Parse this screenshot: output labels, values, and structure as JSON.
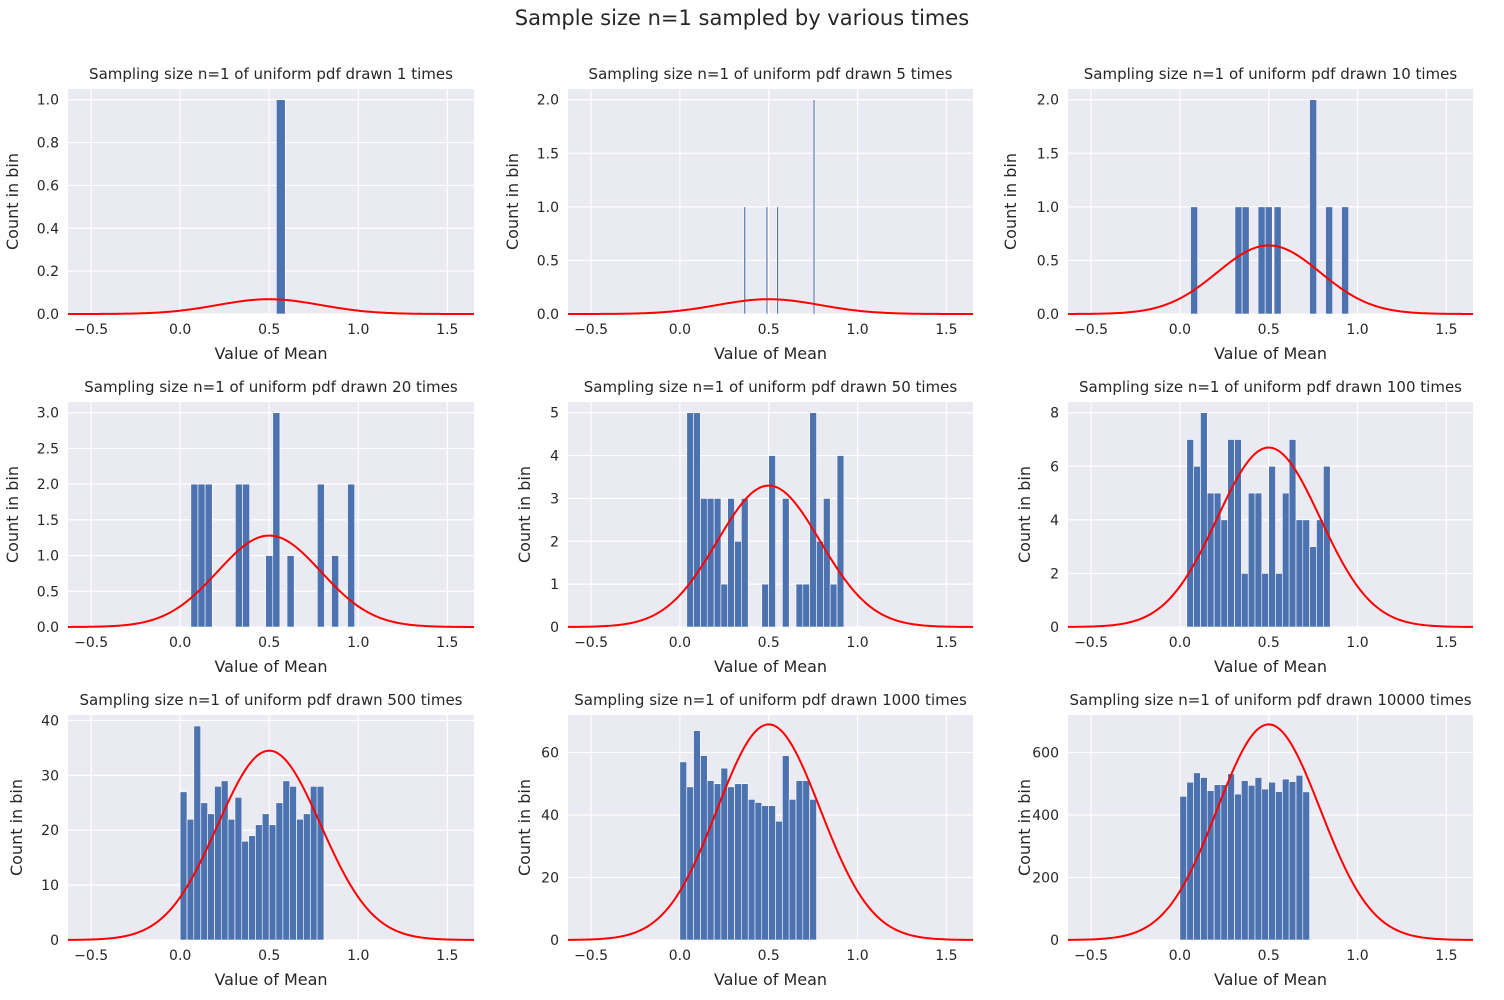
{
  "figure": {
    "suptitle": "Sample size n=1 sampled by various times"
  },
  "colors": {
    "panel_bg": "#EAEAF2",
    "grid": "#ffffff",
    "bar": "#4C72B0",
    "curve": "#ff0000",
    "text": "#262626"
  },
  "chart_data": [
    {
      "type": "bar",
      "title": "Sampling size n=1 of uniform pdf drawn 1 times",
      "xlabel": "Value of Mean",
      "ylabel": "Count in bin",
      "xlim": [
        -0.63,
        1.65
      ],
      "ylim": [
        0,
        1.05
      ],
      "xticks": [
        -0.5,
        0.0,
        0.5,
        1.0,
        1.5
      ],
      "xticklabels": [
        "−0.5",
        "0.0",
        "0.5",
        "1.0",
        "1.5"
      ],
      "yticks": [
        0,
        0.2,
        0.4,
        0.6,
        0.8,
        1.0
      ],
      "yticklabels": [
        "0.0",
        "0.2",
        "0.4",
        "0.6",
        "0.8",
        "1.0"
      ],
      "bin_width": 0.05,
      "bars": [
        {
          "x": 0.565,
          "y": 1
        }
      ],
      "curve": {
        "mean": 0.5,
        "sd": 0.29,
        "peak": 0.069
      },
      "grid": true
    },
    {
      "type": "bar",
      "title": "Sampling size n=1 of uniform pdf drawn 5 times",
      "xlabel": "Value of Mean",
      "ylabel": "Count in bin",
      "xlim": [
        -0.63,
        1.65
      ],
      "ylim": [
        0,
        2.1
      ],
      "xticks": [
        -0.5,
        0.0,
        0.5,
        1.0,
        1.5
      ],
      "xticklabels": [
        "−0.5",
        "0.0",
        "0.5",
        "1.0",
        "1.5"
      ],
      "yticks": [
        0,
        0.5,
        1.0,
        1.5,
        2.0
      ],
      "yticklabels": [
        "0.0",
        "0.5",
        "1.0",
        "1.5",
        "2.0"
      ],
      "bin_width": 0.01,
      "bars": [
        {
          "x": 0.365,
          "y": 1
        },
        {
          "x": 0.49,
          "y": 1
        },
        {
          "x": 0.55,
          "y": 1
        },
        {
          "x": 0.755,
          "y": 2
        }
      ],
      "curve": {
        "mean": 0.5,
        "sd": 0.29,
        "peak": 0.138
      },
      "grid": true
    },
    {
      "type": "bar",
      "title": "Sampling size n=1 of uniform pdf drawn 10 times",
      "xlabel": "Value of Mean",
      "ylabel": "Count in bin",
      "xlim": [
        -0.63,
        1.65
      ],
      "ylim": [
        0,
        2.1
      ],
      "xticks": [
        -0.5,
        0.0,
        0.5,
        1.0,
        1.5
      ],
      "xticklabels": [
        "−0.5",
        "0.0",
        "0.5",
        "1.0",
        "1.5"
      ],
      "yticks": [
        0,
        0.5,
        1.0,
        1.5,
        2.0
      ],
      "yticklabels": [
        "0.0",
        "0.5",
        "1.0",
        "1.5",
        "2.0"
      ],
      "bin_width": 0.04,
      "bars": [
        {
          "x": 0.08,
          "y": 1
        },
        {
          "x": 0.33,
          "y": 1
        },
        {
          "x": 0.37,
          "y": 1
        },
        {
          "x": 0.46,
          "y": 1
        },
        {
          "x": 0.5,
          "y": 1
        },
        {
          "x": 0.55,
          "y": 1
        },
        {
          "x": 0.75,
          "y": 2
        },
        {
          "x": 0.84,
          "y": 1
        },
        {
          "x": 0.93,
          "y": 1
        }
      ],
      "curve": {
        "mean": 0.5,
        "sd": 0.29,
        "peak": 0.64
      },
      "grid": true
    },
    {
      "type": "bar",
      "title": "Sampling size n=1 of uniform pdf drawn 20 times",
      "xlabel": "Value of Mean",
      "ylabel": "Count in bin",
      "xlim": [
        -0.63,
        1.65
      ],
      "ylim": [
        0,
        3.15
      ],
      "xticks": [
        -0.5,
        0.0,
        0.5,
        1.0,
        1.5
      ],
      "xticklabels": [
        "−0.5",
        "0.0",
        "0.5",
        "1.0",
        "1.5"
      ],
      "yticks": [
        0,
        0.5,
        1.0,
        1.5,
        2.0,
        2.5,
        3.0
      ],
      "yticklabels": [
        "0.0",
        "0.5",
        "1.0",
        "1.5",
        "2.0",
        "2.5",
        "3.0"
      ],
      "bin_width": 0.04,
      "bars": [
        {
          "x": 0.08,
          "y": 2
        },
        {
          "x": 0.12,
          "y": 2
        },
        {
          "x": 0.16,
          "y": 2
        },
        {
          "x": 0.33,
          "y": 2
        },
        {
          "x": 0.37,
          "y": 2
        },
        {
          "x": 0.5,
          "y": 1
        },
        {
          "x": 0.54,
          "y": 3
        },
        {
          "x": 0.62,
          "y": 1
        },
        {
          "x": 0.79,
          "y": 2
        },
        {
          "x": 0.87,
          "y": 1
        },
        {
          "x": 0.96,
          "y": 2
        }
      ],
      "curve": {
        "mean": 0.5,
        "sd": 0.29,
        "peak": 1.28
      },
      "grid": true
    },
    {
      "type": "bar",
      "title": "Sampling size n=1 of uniform pdf drawn 50 times",
      "xlabel": "Value of Mean",
      "ylabel": "Count in bin",
      "xlim": [
        -0.63,
        1.65
      ],
      "ylim": [
        0,
        5.25
      ],
      "xticks": [
        -0.5,
        0.0,
        0.5,
        1.0,
        1.5
      ],
      "xticklabels": [
        "−0.5",
        "0.0",
        "0.5",
        "1.0",
        "1.5"
      ],
      "yticks": [
        0,
        1,
        2,
        3,
        4,
        5
      ],
      "yticklabels": [
        "0",
        "1",
        "2",
        "3",
        "4",
        "5"
      ],
      "bin_width": 0.0385,
      "bars": [
        {
          "x": 0.058,
          "y": 5
        },
        {
          "x": 0.096,
          "y": 5
        },
        {
          "x": 0.135,
          "y": 3
        },
        {
          "x": 0.173,
          "y": 3
        },
        {
          "x": 0.212,
          "y": 3
        },
        {
          "x": 0.25,
          "y": 1
        },
        {
          "x": 0.288,
          "y": 3
        },
        {
          "x": 0.327,
          "y": 2
        },
        {
          "x": 0.365,
          "y": 3
        },
        {
          "x": 0.48,
          "y": 1
        },
        {
          "x": 0.519,
          "y": 4
        },
        {
          "x": 0.596,
          "y": 3
        },
        {
          "x": 0.673,
          "y": 1
        },
        {
          "x": 0.711,
          "y": 1
        },
        {
          "x": 0.75,
          "y": 5
        },
        {
          "x": 0.788,
          "y": 2
        },
        {
          "x": 0.827,
          "y": 3
        },
        {
          "x": 0.865,
          "y": 1
        },
        {
          "x": 0.904,
          "y": 4
        }
      ],
      "curve": {
        "mean": 0.5,
        "sd": 0.29,
        "peak": 3.3
      },
      "grid": true
    },
    {
      "type": "bar",
      "title": "Sampling size n=1 of uniform pdf drawn 100 times",
      "xlabel": "Value of Mean",
      "ylabel": "Count in bin",
      "xlim": [
        -0.63,
        1.65
      ],
      "ylim": [
        0,
        8.4
      ],
      "xticks": [
        -0.5,
        0.0,
        0.5,
        1.0,
        1.5
      ],
      "xticklabels": [
        "−0.5",
        "0.0",
        "0.5",
        "1.0",
        "1.5"
      ],
      "yticks": [
        0,
        2,
        4,
        6,
        8
      ],
      "yticklabels": [
        "0",
        "2",
        "4",
        "6",
        "8"
      ],
      "bin_width": 0.0385,
      "bars": [
        {
          "x": 0.058,
          "y": 7
        },
        {
          "x": 0.096,
          "y": 6
        },
        {
          "x": 0.135,
          "y": 8
        },
        {
          "x": 0.173,
          "y": 5
        },
        {
          "x": 0.212,
          "y": 5
        },
        {
          "x": 0.25,
          "y": 4
        },
        {
          "x": 0.288,
          "y": 7
        },
        {
          "x": 0.327,
          "y": 7
        },
        {
          "x": 0.365,
          "y": 2
        },
        {
          "x": 0.404,
          "y": 5
        },
        {
          "x": 0.442,
          "y": 5
        },
        {
          "x": 0.48,
          "y": 2
        },
        {
          "x": 0.519,
          "y": 6
        },
        {
          "x": 0.557,
          "y": 2
        },
        {
          "x": 0.596,
          "y": 5
        },
        {
          "x": 0.634,
          "y": 7
        },
        {
          "x": 0.673,
          "y": 4
        },
        {
          "x": 0.711,
          "y": 4
        },
        {
          "x": 0.75,
          "y": 3
        },
        {
          "x": 0.788,
          "y": 4
        },
        {
          "x": 0.827,
          "y": 6
        }
      ],
      "curve": {
        "mean": 0.5,
        "sd": 0.29,
        "peak": 6.7
      },
      "grid": true
    },
    {
      "type": "bar",
      "title": "Sampling size n=1 of uniform pdf drawn 500 times",
      "xlabel": "Value of Mean",
      "ylabel": "Count in bin",
      "xlim": [
        -0.63,
        1.65
      ],
      "ylim": [
        0,
        41
      ],
      "xticks": [
        -0.5,
        0.0,
        0.5,
        1.0,
        1.5
      ],
      "xticklabels": [
        "−0.5",
        "0.0",
        "0.5",
        "1.0",
        "1.5"
      ],
      "yticks": [
        0,
        10,
        20,
        30,
        40
      ],
      "yticklabels": [
        "0",
        "10",
        "20",
        "30",
        "40"
      ],
      "bin_width": 0.0385,
      "bars": [
        {
          "x": 0.019,
          "y": 27
        },
        {
          "x": 0.058,
          "y": 22
        },
        {
          "x": 0.096,
          "y": 39
        },
        {
          "x": 0.135,
          "y": 25
        },
        {
          "x": 0.173,
          "y": 23
        },
        {
          "x": 0.212,
          "y": 28
        },
        {
          "x": 0.25,
          "y": 29
        },
        {
          "x": 0.288,
          "y": 22
        },
        {
          "x": 0.327,
          "y": 26
        },
        {
          "x": 0.365,
          "y": 18
        },
        {
          "x": 0.404,
          "y": 19
        },
        {
          "x": 0.442,
          "y": 21
        },
        {
          "x": 0.48,
          "y": 23
        },
        {
          "x": 0.519,
          "y": 21
        },
        {
          "x": 0.557,
          "y": 25
        },
        {
          "x": 0.596,
          "y": 29
        },
        {
          "x": 0.634,
          "y": 28
        },
        {
          "x": 0.673,
          "y": 22
        },
        {
          "x": 0.711,
          "y": 23
        },
        {
          "x": 0.75,
          "y": 28
        },
        {
          "x": 0.788,
          "y": 28
        }
      ],
      "curve": {
        "mean": 0.5,
        "sd": 0.29,
        "peak": 34.5
      },
      "grid": true
    },
    {
      "type": "bar",
      "title": "Sampling size n=1 of uniform pdf drawn 1000 times",
      "xlabel": "Value of Mean",
      "ylabel": "Count in bin",
      "xlim": [
        -0.63,
        1.65
      ],
      "ylim": [
        0,
        72
      ],
      "xticks": [
        -0.5,
        0.0,
        0.5,
        1.0,
        1.5
      ],
      "xticklabels": [
        "−0.5",
        "0.0",
        "0.5",
        "1.0",
        "1.5"
      ],
      "yticks": [
        0,
        20,
        40,
        60
      ],
      "yticklabels": [
        "0",
        "20",
        "40",
        "60"
      ],
      "bin_width": 0.0385,
      "bars": [
        {
          "x": 0.019,
          "y": 57
        },
        {
          "x": 0.058,
          "y": 49
        },
        {
          "x": 0.096,
          "y": 67
        },
        {
          "x": 0.135,
          "y": 59
        },
        {
          "x": 0.173,
          "y": 51
        },
        {
          "x": 0.212,
          "y": 50
        },
        {
          "x": 0.25,
          "y": 55
        },
        {
          "x": 0.288,
          "y": 49
        },
        {
          "x": 0.327,
          "y": 50
        },
        {
          "x": 0.365,
          "y": 50
        },
        {
          "x": 0.404,
          "y": 45
        },
        {
          "x": 0.442,
          "y": 44
        },
        {
          "x": 0.48,
          "y": 43
        },
        {
          "x": 0.519,
          "y": 43
        },
        {
          "x": 0.557,
          "y": 38
        },
        {
          "x": 0.596,
          "y": 59
        },
        {
          "x": 0.634,
          "y": 45
        },
        {
          "x": 0.673,
          "y": 51
        },
        {
          "x": 0.711,
          "y": 51
        },
        {
          "x": 0.75,
          "y": 45
        }
      ],
      "curve": {
        "mean": 0.5,
        "sd": 0.29,
        "peak": 69
      },
      "grid": true
    },
    {
      "type": "bar",
      "title": "Sampling size n=1 of uniform pdf drawn 10000 times",
      "xlabel": "Value of Mean",
      "ylabel": "Count in bin",
      "xlim": [
        -0.63,
        1.65
      ],
      "ylim": [
        0,
        720
      ],
      "xticks": [
        -0.5,
        0.0,
        0.5,
        1.0,
        1.5
      ],
      "xticklabels": [
        "−0.5",
        "0.0",
        "0.5",
        "1.0",
        "1.5"
      ],
      "yticks": [
        0,
        200,
        400,
        600
      ],
      "yticklabels": [
        "0",
        "200",
        "400",
        "600"
      ],
      "bin_width": 0.0385,
      "bars": [
        {
          "x": 0.019,
          "y": 460
        },
        {
          "x": 0.058,
          "y": 505
        },
        {
          "x": 0.096,
          "y": 535
        },
        {
          "x": 0.135,
          "y": 520
        },
        {
          "x": 0.173,
          "y": 478
        },
        {
          "x": 0.212,
          "y": 497
        },
        {
          "x": 0.25,
          "y": 497
        },
        {
          "x": 0.288,
          "y": 532
        },
        {
          "x": 0.327,
          "y": 467
        },
        {
          "x": 0.365,
          "y": 510
        },
        {
          "x": 0.404,
          "y": 495
        },
        {
          "x": 0.442,
          "y": 520
        },
        {
          "x": 0.48,
          "y": 483
        },
        {
          "x": 0.519,
          "y": 505
        },
        {
          "x": 0.557,
          "y": 475
        },
        {
          "x": 0.596,
          "y": 515
        },
        {
          "x": 0.634,
          "y": 507
        },
        {
          "x": 0.673,
          "y": 527
        },
        {
          "x": 0.711,
          "y": 474
        }
      ],
      "curve": {
        "mean": 0.5,
        "sd": 0.29,
        "peak": 690
      },
      "grid": true
    }
  ]
}
